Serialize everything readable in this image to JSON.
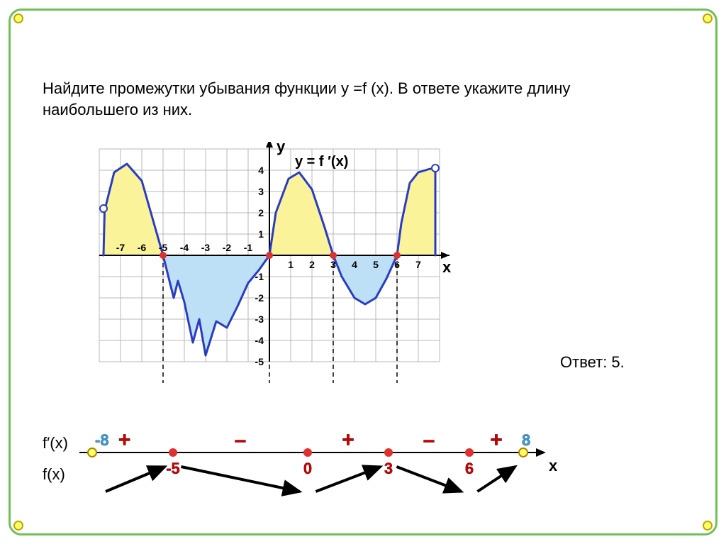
{
  "task_text": "Найдите промежутки убывания функции y =f (x). В ответе укажите длину наибольшего из них.",
  "answer_text": "Ответ: 5.",
  "axes": {
    "y_label": "y",
    "x_label": "x",
    "curve_label": "y = f ′(x)",
    "grid_color": "#b9b9b9",
    "axis_color": "#000000",
    "background": "#ffffff",
    "cell": 30,
    "x_range": [
      -8,
      8
    ],
    "y_range": [
      -5,
      5
    ],
    "x_ticks_neg": [
      -7,
      -6,
      -5,
      -4,
      -3,
      -2,
      -1
    ],
    "x_ticks_pos": [
      1,
      2,
      3,
      4,
      5,
      6,
      7
    ],
    "y_ticks_pos": [
      1,
      2,
      3,
      4
    ],
    "y_ticks_neg": [
      -1,
      -2,
      -3,
      -4,
      -5
    ]
  },
  "curve": {
    "stroke": "#2a3cc2",
    "stroke_width": 3,
    "pos_fill": "#faf39a",
    "neg_fill": "#bde0f7",
    "endpoint_fill": "#ffffff",
    "endpoint_stroke": "#2a3cc2",
    "root_fill": "#e03030",
    "roots": [
      -5,
      0,
      3,
      6
    ],
    "open_endpoints": [
      [
        -7.8,
        2.2
      ],
      [
        7.8,
        4.1
      ]
    ],
    "segments_pos": [
      [
        [
          -7.8,
          0
        ],
        [
          -7.75,
          2.1
        ],
        [
          -7.3,
          3.9
        ],
        [
          -6.7,
          4.3
        ],
        [
          -6.0,
          3.5
        ],
        [
          -5.4,
          1.4
        ],
        [
          -5,
          0
        ]
      ],
      [
        [
          0,
          0
        ],
        [
          0.3,
          2.0
        ],
        [
          0.9,
          3.6
        ],
        [
          1.4,
          3.9
        ],
        [
          2.0,
          3.1
        ],
        [
          2.6,
          1.3
        ],
        [
          3,
          0
        ]
      ],
      [
        [
          6,
          0
        ],
        [
          6.2,
          1.5
        ],
        [
          6.6,
          3.4
        ],
        [
          7.0,
          3.9
        ],
        [
          7.5,
          4.05
        ],
        [
          7.8,
          4.1
        ],
        [
          7.8,
          0
        ]
      ]
    ],
    "segments_neg": [
      [
        [
          -5,
          0
        ],
        [
          -4.7,
          -1.2
        ],
        [
          -4.5,
          -2.0
        ],
        [
          -4.3,
          -1.2
        ],
        [
          -4.0,
          -2.2
        ],
        [
          -3.6,
          -4.1
        ],
        [
          -3.3,
          -3.0
        ],
        [
          -3.0,
          -4.7
        ],
        [
          -2.5,
          -3.1
        ],
        [
          -2.0,
          -3.4
        ],
        [
          -1.5,
          -2.4
        ],
        [
          -1.0,
          -1.3
        ],
        [
          -0.5,
          -0.7
        ],
        [
          0,
          0
        ]
      ],
      [
        [
          3,
          0
        ],
        [
          3.4,
          -1.0
        ],
        [
          4.0,
          -2.0
        ],
        [
          4.5,
          -2.3
        ],
        [
          5.0,
          -2.0
        ],
        [
          5.5,
          -1.1
        ],
        [
          6,
          0
        ]
      ]
    ]
  },
  "numberline": {
    "axis_color": "#000000",
    "x_label": "x",
    "fprime_label": "f′(x)",
    "f_label": "f(x)",
    "end_left": {
      "value": "-8",
      "color": "#3b9fd8"
    },
    "end_right": {
      "value": "8",
      "color": "#3b9fd8"
    },
    "open_dot": {
      "fill": "#ffff66",
      "stroke": "#b08000"
    },
    "root_dot": {
      "fill": "#e03030"
    },
    "roots": [
      {
        "x": -5,
        "label": "-5",
        "color": "#cc0000"
      },
      {
        "x": 0,
        "label": "0",
        "color": "#cc0000"
      },
      {
        "x": 3,
        "label": "3",
        "color": "#cc0000"
      },
      {
        "x": 6,
        "label": "6",
        "color": "#cc0000"
      }
    ],
    "signs": [
      {
        "x": -6.8,
        "s": "+",
        "color": "#cc0000"
      },
      {
        "x": -2.5,
        "s": "–",
        "color": "#cc0000"
      },
      {
        "x": 1.5,
        "s": "+",
        "color": "#cc0000"
      },
      {
        "x": 4.5,
        "s": "–",
        "color": "#cc0000"
      },
      {
        "x": 7.0,
        "s": "+",
        "color": "#cc0000"
      }
    ],
    "arrows": [
      {
        "from": -7.5,
        "to": -5.3,
        "dir": "up"
      },
      {
        "from": -4.7,
        "to": -0.3,
        "dir": "down"
      },
      {
        "from": 0.3,
        "to": 2.7,
        "dir": "up"
      },
      {
        "from": 3.3,
        "to": 5.7,
        "dir": "down"
      },
      {
        "from": 6.3,
        "to": 7.7,
        "dir": "up"
      }
    ],
    "scale": 38
  }
}
